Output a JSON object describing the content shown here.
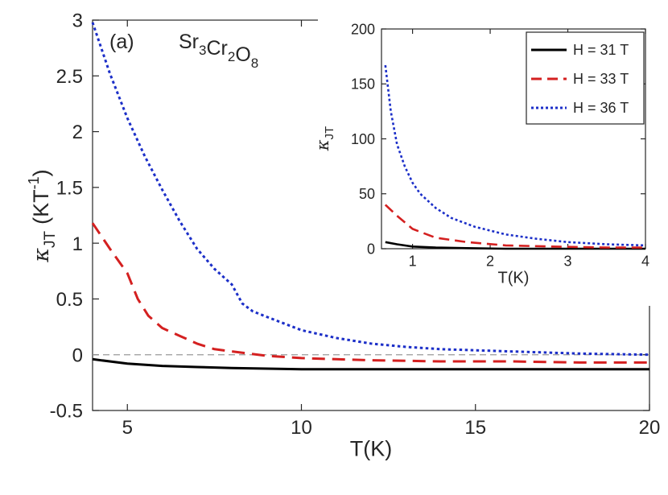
{
  "chart_data": [
    {
      "type": "line",
      "panel_label": "(a)",
      "annotation": {
        "base": "Sr",
        "parts": [
          [
            "Sr",
            "3"
          ],
          [
            "Cr",
            "2"
          ],
          [
            "O",
            "8"
          ]
        ]
      },
      "xlabel": "T(K)",
      "ylabel": "κ",
      "ylabel_sub": "JT",
      "ylabel_unit_prefix": "(KT",
      "ylabel_unit_sup": "-1",
      "ylabel_unit_suffix": ")",
      "xlim": [
        4,
        20
      ],
      "ylim": [
        -0.5,
        3
      ],
      "xticks": [
        5,
        10,
        15,
        20
      ],
      "yticks": [
        -0.5,
        0,
        0.5,
        1,
        1.5,
        2,
        2.5,
        3
      ],
      "ytick_labels": [
        "-0.5",
        "0",
        "0.5",
        "1",
        "1.5",
        "2",
        "2.5",
        "3"
      ],
      "xtick_labels": [
        "5",
        "10",
        "15",
        "20"
      ],
      "reference_line": {
        "y": 0,
        "style": "dashed",
        "color": "#999999"
      },
      "series": [
        {
          "name": "H = 31 T",
          "color": "#000000",
          "style": "solid",
          "x": [
            4,
            5,
            6,
            7,
            8,
            10,
            12,
            15,
            18,
            20
          ],
          "y": [
            -0.04,
            -0.08,
            -0.1,
            -0.11,
            -0.12,
            -0.13,
            -0.13,
            -0.13,
            -0.13,
            -0.13
          ]
        },
        {
          "name": "H = 33 T",
          "color": "#d42020",
          "style": "dashed",
          "x": [
            4,
            4.5,
            5,
            5.3,
            5.6,
            6,
            6.5,
            7,
            7.5,
            8,
            8.5,
            9,
            10,
            11,
            12,
            14,
            16,
            18,
            20
          ],
          "y": [
            1.18,
            0.95,
            0.73,
            0.5,
            0.35,
            0.24,
            0.17,
            0.1,
            0.05,
            0.03,
            0.01,
            -0.01,
            -0.03,
            -0.04,
            -0.05,
            -0.06,
            -0.06,
            -0.07,
            -0.07
          ]
        },
        {
          "name": "H = 36 T",
          "color": "#1c2fc8",
          "style": "dotted",
          "x": [
            4,
            4.5,
            5,
            5.5,
            6,
            6.5,
            7,
            7.5,
            8,
            8.3,
            8.6,
            9,
            10,
            11,
            12,
            13,
            14,
            15,
            16,
            18,
            20
          ],
          "y": [
            2.98,
            2.52,
            2.12,
            1.78,
            1.48,
            1.2,
            0.95,
            0.77,
            0.63,
            0.46,
            0.39,
            0.34,
            0.22,
            0.15,
            0.1,
            0.07,
            0.05,
            0.04,
            0.03,
            0.01,
            0.0
          ]
        }
      ]
    },
    {
      "type": "line",
      "inset": true,
      "xlabel": "T(K)",
      "ylabel": "κ",
      "ylabel_sub": "JT",
      "xlim": [
        0.6,
        4
      ],
      "ylim": [
        0,
        200
      ],
      "xticks": [
        1,
        2,
        3,
        4
      ],
      "xtick_labels": [
        "1",
        "2",
        "3",
        "4"
      ],
      "yticks": [
        0,
        50,
        100,
        150,
        200
      ],
      "ytick_labels": [
        "0",
        "50",
        "100",
        "150",
        "200"
      ],
      "legend": {
        "placement": "top-right",
        "entries": [
          "H = 31 T",
          "H = 33 T",
          "H = 36 T"
        ]
      },
      "series": [
        {
          "name": "H = 31 T",
          "color": "#000000",
          "style": "solid",
          "x": [
            0.65,
            0.8,
            1.0,
            1.3,
            1.7,
            2.2,
            3.0,
            4.0
          ],
          "y": [
            6,
            4,
            2,
            1,
            0.5,
            0,
            -0.5,
            -0.5
          ]
        },
        {
          "name": "H = 33 T",
          "color": "#d42020",
          "style": "dashed",
          "x": [
            0.65,
            0.8,
            1.0,
            1.3,
            1.7,
            2.2,
            2.8,
            3.5,
            4.0
          ],
          "y": [
            40,
            30,
            18,
            10,
            6,
            3,
            2,
            1,
            1
          ]
        },
        {
          "name": "H = 36 T",
          "color": "#1c2fc8",
          "style": "dotted",
          "x": [
            0.65,
            0.72,
            0.8,
            0.9,
            1.0,
            1.1,
            1.3,
            1.5,
            1.8,
            2.2,
            2.6,
            3.0,
            3.5,
            4.0
          ],
          "y": [
            167,
            125,
            95,
            75,
            60,
            50,
            37,
            28,
            20,
            13,
            9,
            6,
            4,
            3
          ]
        }
      ]
    }
  ]
}
